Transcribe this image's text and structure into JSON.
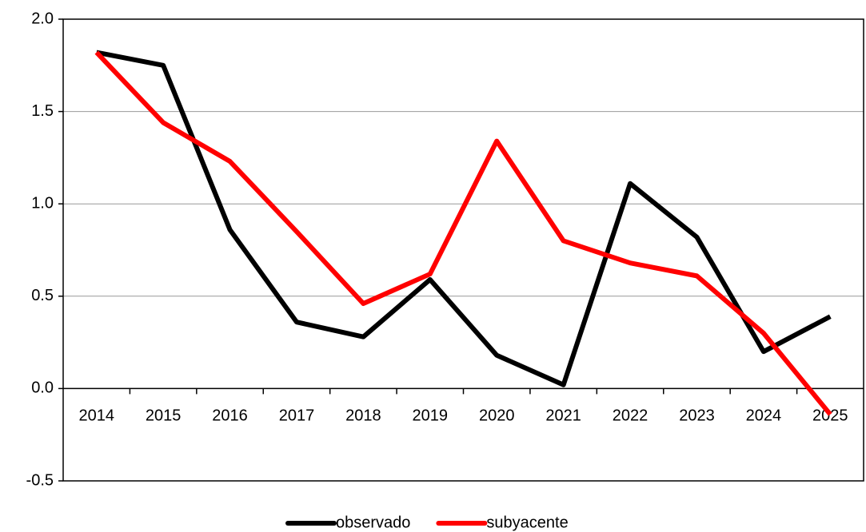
{
  "chart_data": {
    "type": "line",
    "categories": [
      "2014",
      "2015",
      "2016",
      "2017",
      "2018",
      "2019",
      "2020",
      "2021",
      "2022",
      "2023",
      "2024",
      "2025"
    ],
    "series": [
      {
        "name": "observado",
        "color": "#000000",
        "values": [
          1.82,
          1.75,
          0.86,
          0.36,
          0.28,
          0.59,
          0.18,
          0.02,
          1.11,
          0.82,
          0.2,
          0.39
        ]
      },
      {
        "name": "subyacente",
        "color": "#ff0000",
        "values": [
          1.82,
          1.44,
          1.23,
          0.85,
          0.46,
          0.62,
          1.34,
          0.8,
          0.68,
          0.61,
          0.3,
          -0.14
        ]
      }
    ],
    "ylim": [
      -0.5,
      2.0
    ],
    "yticks": [
      -0.5,
      {
        "value": 0,
        "label": "0.0"
      },
      0.5,
      {
        "value": 1,
        "label": "1.0"
      },
      {
        "value": 1.5,
        "label": "1.5"
      },
      {
        "value": 2,
        "label": "2.0"
      }
    ],
    "grid": true,
    "legend": "bottom"
  }
}
